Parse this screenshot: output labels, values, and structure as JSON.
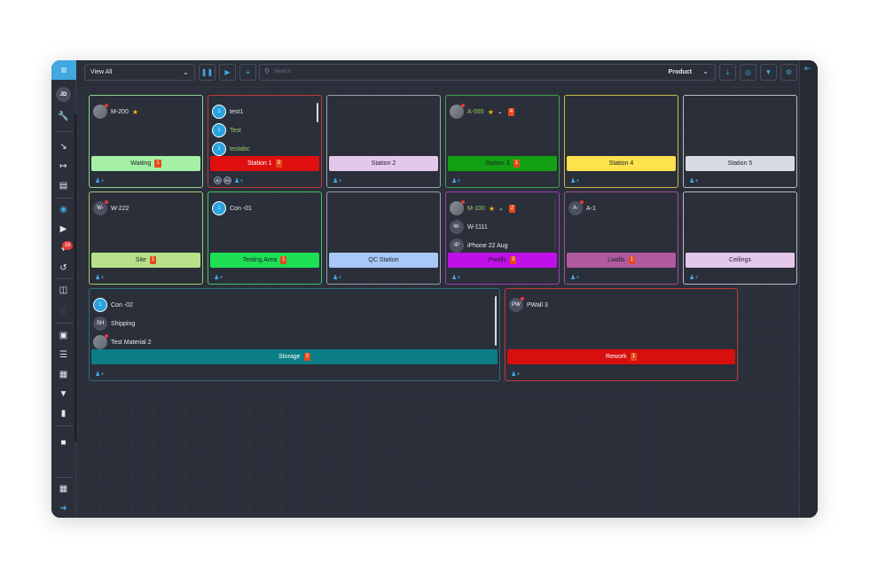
{
  "user_initials": "JD",
  "notification_count": "16",
  "toolbar": {
    "view_select": "View All",
    "search_placeholder": "Search",
    "product_select": "Product"
  },
  "colors": {
    "accent": "#3fa9e0",
    "count_badge": "#e64a19"
  },
  "cards": {
    "waiting": {
      "item": "M-200",
      "bar": "Waiting",
      "count": "1"
    },
    "station1": {
      "items": [
        "test1",
        "Test",
        "testabc"
      ],
      "bar": "Station 1",
      "count": "9",
      "users": [
        "JD",
        "DO"
      ]
    },
    "station2": {
      "bar": "Station 2"
    },
    "station3": {
      "item": "A-555",
      "item_count": "4",
      "bar": "Station 3",
      "count": "1"
    },
    "station4": {
      "bar": "Station 4"
    },
    "station5": {
      "bar": "Station 5"
    },
    "site": {
      "item": "W-222",
      "avatar": "W-",
      "bar": "Site",
      "count": "1"
    },
    "testing": {
      "item": "Con -01",
      "bar": "Testing Area",
      "count": "1"
    },
    "qc": {
      "bar": "QC Station"
    },
    "pwalls": {
      "items": [
        "M-100",
        "W-1111",
        "iPhone 22 Aug"
      ],
      "avatars": [
        "W-",
        "IP"
      ],
      "item_count": "2",
      "bar": "Pwalls",
      "count": "3"
    },
    "lwalls": {
      "item": "A-1",
      "avatar": "A-",
      "bar": "Lwalls",
      "count": "1"
    },
    "ceilings": {
      "bar": "Ceilings"
    },
    "storage": {
      "items": [
        "Con -02",
        "Shipping",
        "Test Material 2"
      ],
      "avatars": [
        "SH"
      ],
      "bar": "Storage",
      "count": "3"
    },
    "rework": {
      "item": "PWall 3",
      "avatar": "PW",
      "bar": "Rework",
      "count": "1"
    }
  }
}
